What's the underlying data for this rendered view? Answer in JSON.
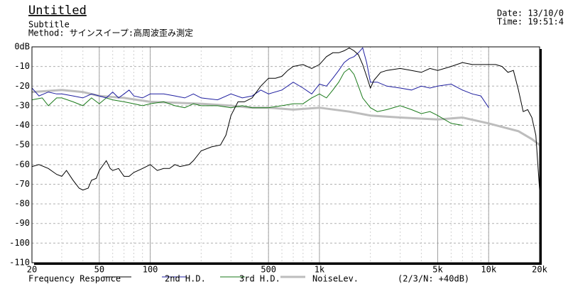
{
  "chart_data": {
    "type": "line",
    "title": "Untitled",
    "subtitle": "Subtitle",
    "method": "Method: サインスイープ:高周波歪み測定",
    "date": "Date: 13/10/0",
    "time": "Time: 19:51:4",
    "legend_note": "(2/3/N: +40dB)",
    "xscale": "log",
    "grid": true,
    "xlim": [
      20,
      20000
    ],
    "ylim": [
      -110,
      0
    ],
    "xticks": [
      20,
      50,
      100,
      500,
      {
        "value": 1000,
        "label": "1k"
      },
      {
        "value": 5000,
        "label": "5k"
      },
      {
        "value": 10000,
        "label": "10k"
      },
      {
        "value": 20000,
        "label": "20k"
      }
    ],
    "yticks": [
      {
        "value": 0,
        "label": "0dB"
      },
      -10,
      -20,
      -30,
      -40,
      -50,
      -60,
      -70,
      -80,
      -90,
      -100,
      -110
    ],
    "series": [
      {
        "name": "Frequency Responce",
        "color": "#000000",
        "width": 1,
        "x": [
          20,
          22,
          25,
          28,
          30,
          32,
          35,
          38,
          40,
          43,
          45,
          48,
          50,
          55,
          58,
          60,
          65,
          70,
          75,
          80,
          90,
          100,
          110,
          120,
          130,
          140,
          150,
          170,
          180,
          200,
          230,
          260,
          280,
          300,
          330,
          360,
          400,
          450,
          500,
          550,
          600,
          650,
          700,
          800,
          900,
          1000,
          1100,
          1200,
          1300,
          1400,
          1500,
          1600,
          1700,
          1800,
          1900,
          2000,
          2100,
          2300,
          2500,
          3000,
          3500,
          4000,
          4500,
          5000,
          6000,
          7000,
          8000,
          9000,
          10000,
          11000,
          12000,
          13000,
          14000,
          15000,
          16000,
          17000,
          18000,
          19000,
          20000
        ],
        "values": [
          -61,
          -60,
          -62,
          -65,
          -66,
          -63,
          -68,
          -72,
          -73,
          -72,
          -68,
          -67,
          -63,
          -58,
          -62,
          -63,
          -62,
          -66,
          -66,
          -64,
          -62,
          -60,
          -63,
          -62,
          -62,
          -60,
          -61,
          -60,
          -58,
          -53,
          -51,
          -50,
          -45,
          -35,
          -28,
          -28,
          -26,
          -20,
          -16,
          -16,
          -15,
          -12,
          -10,
          -9,
          -11,
          -9,
          -5,
          -3,
          -3,
          -2,
          -0.5,
          -2,
          -4,
          -9,
          -15,
          -21,
          -17,
          -13,
          -12,
          -11,
          -12,
          -13,
          -11,
          -12,
          -10,
          -8,
          -9,
          -9,
          -9,
          -9,
          -10,
          -13,
          -12,
          -22,
          -33,
          -32,
          -36,
          -45,
          -73
        ]
      },
      {
        "name": "2nd H.D.",
        "color": "#1f1fa0",
        "width": 1,
        "x": [
          20,
          22,
          25,
          28,
          30,
          35,
          40,
          45,
          50,
          55,
          60,
          65,
          70,
          75,
          80,
          90,
          100,
          120,
          140,
          160,
          180,
          200,
          250,
          300,
          350,
          400,
          450,
          500,
          600,
          700,
          800,
          900,
          1000,
          1100,
          1200,
          1300,
          1400,
          1500,
          1600,
          1700,
          1800,
          1900,
          2000,
          2200,
          2500,
          3000,
          3500,
          4000,
          4500,
          5000,
          6000,
          7000,
          8000,
          9000,
          10000
        ],
        "values": [
          -21,
          -25,
          -23,
          -24,
          -24,
          -25,
          -26,
          -24,
          -25,
          -26,
          -23,
          -26,
          -24,
          -22,
          -25,
          -26,
          -24,
          -24,
          -25,
          -26,
          -24,
          -26,
          -27,
          -24,
          -26,
          -25,
          -22,
          -24,
          -22,
          -18,
          -21,
          -24,
          -19,
          -20,
          -16,
          -12,
          -8,
          -6,
          -5,
          -3,
          -0.5,
          -8,
          -18,
          -18,
          -20,
          -21,
          -22,
          -20,
          -21,
          -20,
          -19,
          -22,
          -24,
          -25,
          -31
        ]
      },
      {
        "name": "3rd H.D.",
        "color": "#1a7a1a",
        "width": 1,
        "x": [
          20,
          23,
          25,
          28,
          30,
          35,
          40,
          45,
          50,
          55,
          60,
          70,
          80,
          90,
          100,
          120,
          140,
          160,
          180,
          200,
          250,
          300,
          350,
          400,
          500,
          600,
          700,
          800,
          900,
          1000,
          1100,
          1200,
          1300,
          1400,
          1500,
          1600,
          1700,
          1800,
          2000,
          2200,
          2500,
          3000,
          3500,
          4000,
          4500,
          5000,
          6000,
          7000
        ],
        "values": [
          -27,
          -26,
          -30,
          -26,
          -26,
          -28,
          -30,
          -26,
          -29,
          -26,
          -27,
          -28,
          -29,
          -30,
          -29,
          -28,
          -30,
          -31,
          -29,
          -30,
          -30,
          -31,
          -30,
          -31,
          -31,
          -30,
          -29,
          -29,
          -26,
          -24,
          -26,
          -22,
          -18,
          -13,
          -11,
          -14,
          -20,
          -26,
          -31,
          -33,
          -32,
          -30,
          -32,
          -34,
          -33,
          -35,
          -39,
          -40
        ]
      },
      {
        "name": "NoiseLev.",
        "color": "#bdbdbd",
        "width": 3,
        "x": [
          20,
          30,
          40,
          50,
          70,
          100,
          200,
          300,
          400,
          500,
          700,
          1000,
          1500,
          2000,
          3000,
          5000,
          7000,
          10000,
          15000,
          18000,
          20000
        ],
        "values": [
          -23,
          -22,
          -23,
          -25,
          -26,
          -28,
          -29,
          -30,
          -31,
          -31,
          -32,
          -31,
          -33,
          -35,
          -36,
          -37,
          -36,
          -39,
          -43,
          -47,
          -50
        ]
      }
    ]
  }
}
